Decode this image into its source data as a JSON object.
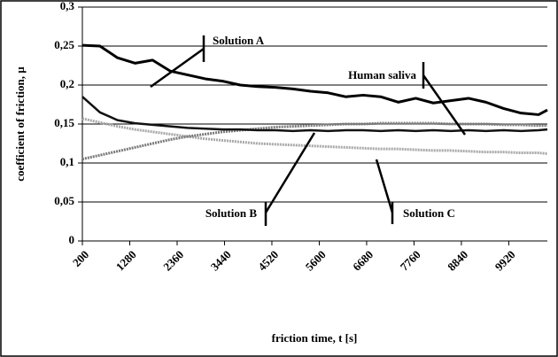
{
  "chart_data": {
    "type": "line",
    "xlabel": "friction time, t [s]",
    "ylabel": "coefficient of friction, µ",
    "x": [
      200,
      600,
      1000,
      1400,
      1800,
      2200,
      2600,
      3000,
      3400,
      3800,
      4200,
      4600,
      5000,
      5400,
      5800,
      6200,
      6600,
      7000,
      7400,
      7800,
      8200,
      8600,
      9000,
      9400,
      9800,
      10200,
      10600,
      10800
    ],
    "series": [
      {
        "name": "Solution A",
        "color": "#000000",
        "values": [
          0.251,
          0.25,
          0.235,
          0.228,
          0.232,
          0.218,
          0.213,
          0.208,
          0.205,
          0.2,
          0.198,
          0.197,
          0.195,
          0.192,
          0.19,
          0.185,
          0.187,
          0.185,
          0.178,
          0.183,
          0.177,
          0.18,
          0.183,
          0.178,
          0.17,
          0.164,
          0.162,
          0.168
        ]
      },
      {
        "name": "Human saliva",
        "color": "#111111",
        "values": [
          0.185,
          0.165,
          0.155,
          0.151,
          0.149,
          0.147,
          0.145,
          0.144,
          0.143,
          0.143,
          0.142,
          0.142,
          0.141,
          0.142,
          0.141,
          0.142,
          0.142,
          0.141,
          0.142,
          0.141,
          0.142,
          0.141,
          0.142,
          0.141,
          0.142,
          0.141,
          0.142,
          0.143
        ]
      },
      {
        "name": "Solution B",
        "color": "#7a7a7a",
        "values": [
          0.105,
          0.11,
          0.115,
          0.12,
          0.125,
          0.13,
          0.134,
          0.137,
          0.14,
          0.142,
          0.144,
          0.146,
          0.147,
          0.148,
          0.149,
          0.15,
          0.15,
          0.151,
          0.151,
          0.151,
          0.151,
          0.15,
          0.15,
          0.15,
          0.149,
          0.149,
          0.148,
          0.148
        ]
      },
      {
        "name": "Solution C",
        "color": "#a8a8a8",
        "values": [
          0.157,
          0.152,
          0.147,
          0.143,
          0.14,
          0.137,
          0.134,
          0.131,
          0.129,
          0.127,
          0.125,
          0.124,
          0.123,
          0.122,
          0.121,
          0.12,
          0.119,
          0.118,
          0.118,
          0.117,
          0.116,
          0.116,
          0.115,
          0.114,
          0.114,
          0.113,
          0.113,
          0.112
        ]
      }
    ],
    "xlim": [
      200,
      10800
    ],
    "xticks": [
      200,
      1280,
      2360,
      3440,
      4520,
      5600,
      6680,
      7760,
      8840,
      9920
    ],
    "ylim": [
      0,
      0.3
    ],
    "yticks": [
      {
        "value": 0,
        "label": "0"
      },
      {
        "value": 0.05,
        "label": "0,05"
      },
      {
        "value": 0.1,
        "label": "0,1"
      },
      {
        "value": 0.15,
        "label": "0,15"
      },
      {
        "value": 0.2,
        "label": "0,2"
      },
      {
        "value": 0.25,
        "label": "0,25"
      },
      {
        "value": 0.3,
        "label": "0,3"
      }
    ],
    "grid": true
  }
}
